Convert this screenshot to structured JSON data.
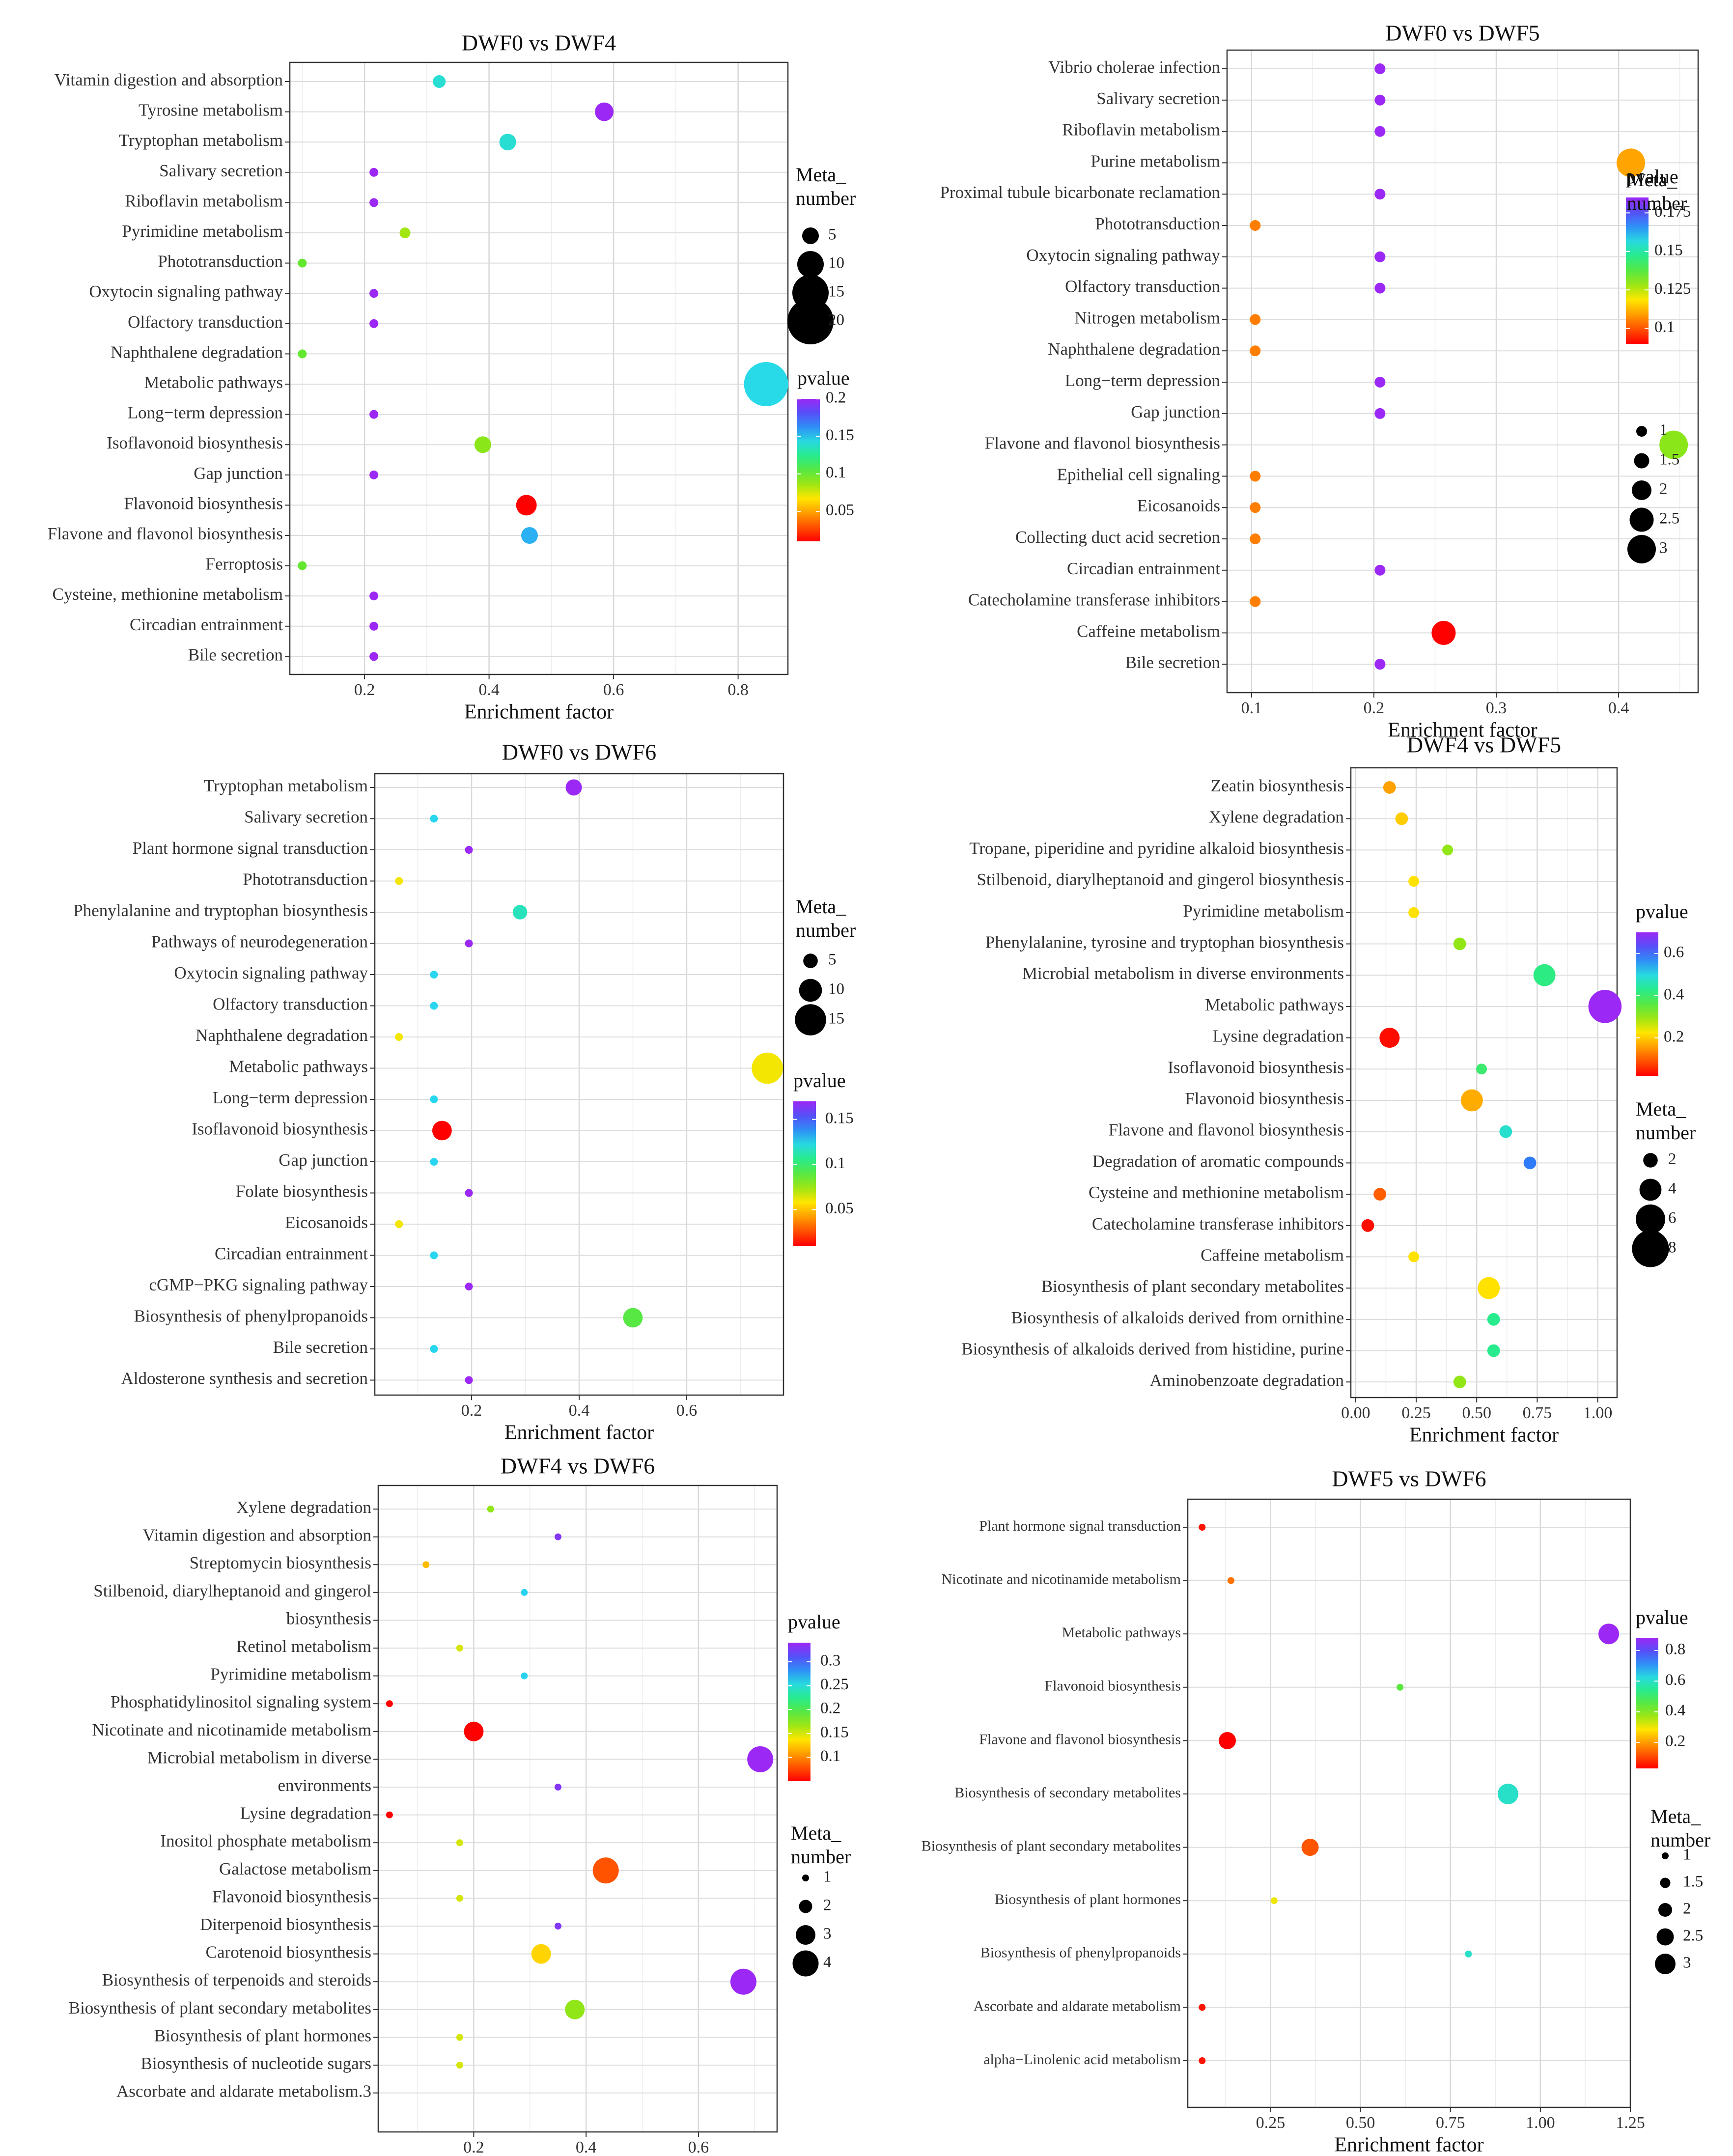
{
  "figure": "KEGG enrichment bubble plots",
  "chart_data": [
    {
      "id": "p1",
      "type": "scatter",
      "title": "DWF0 vs DWF4",
      "xlabel": "Enrichment factor",
      "xlim": [
        0.08,
        0.88
      ],
      "xticks": [
        0.2,
        0.4,
        0.6,
        0.8
      ],
      "categories": [
        "Vitamin digestion and absorption",
        "Tyrosine metabolism",
        "Tryptophan metabolism",
        "Salivary secretion",
        "Riboflavin metabolism",
        "Pyrimidine metabolism",
        "Phototransduction",
        "Oxytocin signaling pathway",
        "Olfactory transduction",
        "Naphthalene degradation",
        "Metabolic pathways",
        "Long−term depression",
        "Isoflavonoid biosynthesis",
        "Gap junction",
        "Flavonoid biosynthesis",
        "Flavone and flavonol biosynthesis",
        "Ferroptosis",
        "Cysteine, methionine metabolism",
        "Circadian entrainment",
        "Bile secretion"
      ],
      "points": [
        {
          "x": 0.32,
          "p": 0.14,
          "size": 3
        },
        {
          "x": 0.585,
          "p": 0.2,
          "size": 6
        },
        {
          "x": 0.43,
          "p": 0.14,
          "size": 5
        },
        {
          "x": 0.215,
          "p": 0.2,
          "size": 1
        },
        {
          "x": 0.215,
          "p": 0.2,
          "size": 1
        },
        {
          "x": 0.265,
          "p": 0.085,
          "size": 2
        },
        {
          "x": 0.1,
          "p": 0.1,
          "size": 1
        },
        {
          "x": 0.215,
          "p": 0.2,
          "size": 1
        },
        {
          "x": 0.215,
          "p": 0.2,
          "size": 1
        },
        {
          "x": 0.1,
          "p": 0.1,
          "size": 1
        },
        {
          "x": 0.845,
          "p": 0.145,
          "size": 19
        },
        {
          "x": 0.215,
          "p": 0.2,
          "size": 1
        },
        {
          "x": 0.39,
          "p": 0.09,
          "size": 5
        },
        {
          "x": 0.215,
          "p": 0.2,
          "size": 1
        },
        {
          "x": 0.46,
          "p": 0.01,
          "size": 7
        },
        {
          "x": 0.465,
          "p": 0.155,
          "size": 5
        },
        {
          "x": 0.1,
          "p": 0.1,
          "size": 1
        },
        {
          "x": 0.215,
          "p": 0.2,
          "size": 1
        },
        {
          "x": 0.215,
          "p": 0.2,
          "size": 1
        },
        {
          "x": 0.215,
          "p": 0.2,
          "size": 1
        }
      ],
      "legend": {
        "size_title": [
          "Meta_",
          "number"
        ],
        "size_values": [
          5,
          10,
          15,
          20
        ],
        "color_title": "pvalue",
        "color_range": [
          0.01,
          0.2
        ],
        "color_ticks": [
          0.2,
          0.15,
          0.1,
          0.05
        ]
      }
    },
    {
      "id": "p2",
      "type": "scatter",
      "title": "DWF0 vs DWF5",
      "xlabel": "Enrichment factor",
      "xlim": [
        0.08,
        0.465
      ],
      "xticks": [
        0.1,
        0.2,
        0.3,
        0.4
      ],
      "categories": [
        "Vibrio cholerae infection",
        "Salivary secretion",
        "Riboflavin metabolism",
        "Purine metabolism",
        "Proximal tubule bicarbonate reclamation",
        "Phototransduction",
        "Oxytocin signaling pathway",
        "Olfactory transduction",
        "Nitrogen metabolism",
        "Naphthalene degradation",
        "Long−term depression",
        "Gap junction",
        "Flavone and flavonol biosynthesis",
        "Epithelial cell signaling",
        "Eicosanoids",
        "Collecting duct acid secretion",
        "Circadian entrainment",
        "Catecholamine transferase inhibitors",
        "Caffeine metabolism",
        "Bile secretion"
      ],
      "points": [
        {
          "x": 0.205,
          "p": 0.185,
          "size": 1
        },
        {
          "x": 0.205,
          "p": 0.185,
          "size": 1
        },
        {
          "x": 0.205,
          "p": 0.185,
          "size": 1
        },
        {
          "x": 0.41,
          "p": 0.11,
          "size": 3
        },
        {
          "x": 0.205,
          "p": 0.185,
          "size": 1
        },
        {
          "x": 0.103,
          "p": 0.105,
          "size": 1
        },
        {
          "x": 0.205,
          "p": 0.185,
          "size": 1
        },
        {
          "x": 0.205,
          "p": 0.185,
          "size": 1
        },
        {
          "x": 0.103,
          "p": 0.105,
          "size": 1
        },
        {
          "x": 0.103,
          "p": 0.105,
          "size": 1
        },
        {
          "x": 0.205,
          "p": 0.185,
          "size": 1
        },
        {
          "x": 0.205,
          "p": 0.185,
          "size": 1
        },
        {
          "x": 0.445,
          "p": 0.13,
          "size": 3
        },
        {
          "x": 0.103,
          "p": 0.105,
          "size": 1
        },
        {
          "x": 0.103,
          "p": 0.105,
          "size": 1
        },
        {
          "x": 0.103,
          "p": 0.105,
          "size": 1
        },
        {
          "x": 0.205,
          "p": 0.185,
          "size": 1
        },
        {
          "x": 0.103,
          "p": 0.105,
          "size": 1
        },
        {
          "x": 0.257,
          "p": 0.09,
          "size": 2.5
        },
        {
          "x": 0.205,
          "p": 0.185,
          "size": 1
        }
      ],
      "legend": {
        "size_title": [
          "Meta_",
          "number"
        ],
        "size_values": [
          1.0,
          1.5,
          2.0,
          2.5,
          3.0
        ],
        "color_title": "pvalue",
        "color_range": [
          0.09,
          0.185
        ],
        "color_ticks": [
          0.175,
          0.15,
          0.125,
          0.1
        ]
      }
    },
    {
      "id": "p3",
      "type": "scatter",
      "title": "DWF0 vs DWF6",
      "xlabel": "Enrichment factor",
      "xlim": [
        0.02,
        0.78
      ],
      "xticks": [
        0.2,
        0.4,
        0.6
      ],
      "categories": [
        "Tryptophan metabolism",
        "Salivary secretion",
        "Plant hormone signal transduction",
        "Phototransduction",
        "Phenylalanine and tryptophan biosynthesis",
        "Pathways of neurodegeneration",
        "Oxytocin signaling pathway",
        "Olfactory transduction",
        "Naphthalene degradation",
        "Metabolic pathways",
        "Long−term depression",
        "Isoflavonoid biosynthesis",
        "Gap junction",
        "Folate biosynthesis",
        "Eicosanoids",
        "Circadian entrainment",
        "cGMP−PKG signaling pathway",
        "Biosynthesis of phenylpropanoids",
        "Bile secretion",
        "Aldosterone synthesis and secretion"
      ],
      "points": [
        {
          "x": 0.39,
          "p": 0.17,
          "size": 6
        },
        {
          "x": 0.13,
          "p": 0.125,
          "size": 1
        },
        {
          "x": 0.195,
          "p": 0.17,
          "size": 1
        },
        {
          "x": 0.065,
          "p": 0.06,
          "size": 1
        },
        {
          "x": 0.29,
          "p": 0.115,
          "size": 5
        },
        {
          "x": 0.195,
          "p": 0.17,
          "size": 1
        },
        {
          "x": 0.13,
          "p": 0.125,
          "size": 1
        },
        {
          "x": 0.13,
          "p": 0.125,
          "size": 1
        },
        {
          "x": 0.065,
          "p": 0.06,
          "size": 1
        },
        {
          "x": 0.75,
          "p": 0.06,
          "size": 15
        },
        {
          "x": 0.13,
          "p": 0.125,
          "size": 1
        },
        {
          "x": 0.145,
          "p": 0.01,
          "size": 8
        },
        {
          "x": 0.13,
          "p": 0.125,
          "size": 1
        },
        {
          "x": 0.195,
          "p": 0.17,
          "size": 1
        },
        {
          "x": 0.065,
          "p": 0.06,
          "size": 1
        },
        {
          "x": 0.13,
          "p": 0.125,
          "size": 1
        },
        {
          "x": 0.195,
          "p": 0.17,
          "size": 1
        },
        {
          "x": 0.5,
          "p": 0.09,
          "size": 8
        },
        {
          "x": 0.13,
          "p": 0.125,
          "size": 1
        },
        {
          "x": 0.195,
          "p": 0.17,
          "size": 1
        }
      ],
      "legend": {
        "size_title": [
          "Meta_",
          "number"
        ],
        "size_values": [
          5,
          10,
          15
        ],
        "color_title": "pvalue",
        "color_range": [
          0.01,
          0.17
        ],
        "color_ticks": [
          0.15,
          0.1,
          0.05
        ]
      }
    },
    {
      "id": "p4",
      "type": "scatter",
      "title": "DWF4 vs DWF5",
      "xlabel": "Enrichment factor",
      "xlim": [
        -0.02,
        1.08
      ],
      "xticks": [
        0.0,
        0.25,
        0.5,
        0.75,
        1.0
      ],
      "xtick_labels": [
        "0.00",
        "0.25",
        "0.50",
        "0.75",
        "1.00"
      ],
      "categories": [
        "Zeatin biosynthesis",
        "Xylene degradation",
        "Tropane, piperidine and pyridine alkaloid biosynthesis",
        "Stilbenoid, diarylheptanoid and gingerol biosynthesis",
        "Pyrimidine metabolism",
        "Phenylalanine, tyrosine and tryptophan biosynthesis",
        "Microbial metabolism in diverse environments",
        "Metabolic pathways",
        "Lysine degradation",
        "Isoflavonoid biosynthesis",
        "Flavonoid biosynthesis",
        "Flavone and flavonol biosynthesis",
        "Degradation of aromatic compounds",
        "Cysteine and methionine metabolism",
        "Catecholamine transferase inhibitors",
        "Caffeine metabolism",
        "Biosynthesis of plant secondary metabolites",
        "Biosynthesis of alkaloids derived from ornithine",
        "Biosynthesis of alkaloids derived from histidine, purine",
        "Aminobenzoate degradation"
      ],
      "points": [
        {
          "x": 0.14,
          "p": 0.16,
          "size": 1.5
        },
        {
          "x": 0.19,
          "p": 0.2,
          "size": 1.5
        },
        {
          "x": 0.38,
          "p": 0.3,
          "size": 1
        },
        {
          "x": 0.24,
          "p": 0.22,
          "size": 1
        },
        {
          "x": 0.24,
          "p": 0.22,
          "size": 1
        },
        {
          "x": 0.43,
          "p": 0.3,
          "size": 1.5
        },
        {
          "x": 0.78,
          "p": 0.42,
          "size": 4
        },
        {
          "x": 1.03,
          "p": 0.7,
          "size": 7
        },
        {
          "x": 0.14,
          "p": 0.03,
          "size": 3.5
        },
        {
          "x": 0.52,
          "p": 0.4,
          "size": 1
        },
        {
          "x": 0.48,
          "p": 0.17,
          "size": 4
        },
        {
          "x": 0.62,
          "p": 0.48,
          "size": 1.5
        },
        {
          "x": 0.72,
          "p": 0.58,
          "size": 1.5
        },
        {
          "x": 0.1,
          "p": 0.1,
          "size": 1.5
        },
        {
          "x": 0.05,
          "p": 0.03,
          "size": 1.5
        },
        {
          "x": 0.24,
          "p": 0.22,
          "size": 1
        },
        {
          "x": 0.55,
          "p": 0.22,
          "size": 4
        },
        {
          "x": 0.57,
          "p": 0.43,
          "size": 1.5
        },
        {
          "x": 0.57,
          "p": 0.43,
          "size": 1.5
        },
        {
          "x": 0.43,
          "p": 0.3,
          "size": 1.5
        }
      ],
      "legend": {
        "size_title": [
          "Meta_",
          "number"
        ],
        "size_values": [
          2,
          4,
          6,
          8
        ],
        "color_title": "pvalue",
        "color_range": [
          0.02,
          0.7
        ],
        "color_ticks": [
          0.6,
          0.4,
          0.2
        ]
      }
    },
    {
      "id": "p5",
      "type": "scatter",
      "title": "DWF4 vs DWF6",
      "xlabel": "Enrichment factor",
      "xlim": [
        0.03,
        0.74
      ],
      "xticks": [
        0.2,
        0.4,
        0.6
      ],
      "categories": [
        "Xylene degradation",
        "Vitamin digestion and absorption",
        "Streptomycin biosynthesis",
        "Stilbenoid, diarylheptanoid and gingerol",
        "biosynthesis",
        "Retinol metabolism",
        "Pyrimidine metabolism",
        "Phosphatidylinositol signaling system",
        "Nicotinate and nicotinamide metabolism",
        "Microbial metabolism in diverse",
        "environments",
        "Lysine degradation",
        "Inositol phosphate metabolism",
        "Galactose metabolism",
        "Flavonoid biosynthesis",
        "Diterpenoid biosynthesis",
        "Carotenoid biosynthesis",
        "Biosynthesis of terpenoids and steroids",
        "Biosynthesis of plant secondary metabolites",
        "Biosynthesis of plant hormones",
        "Biosynthesis of nucleotide sugars",
        "Ascorbate and aldarate metabolism.3"
      ],
      "points": [
        {
          "x": 0.23,
          "p": 0.17,
          "size": 1
        },
        {
          "x": 0.35,
          "p": 0.33,
          "size": 1
        },
        {
          "x": 0.115,
          "p": 0.12,
          "size": 1
        },
        {
          "x": 0.29,
          "p": 0.26,
          "size": 1
        },
        {
          "x": 0.175,
          "p": 0.15,
          "size": 1
        },
        {
          "x": 0.29,
          "p": 0.26,
          "size": 1
        },
        {
          "x": 0.05,
          "p": 0.05,
          "size": 1
        },
        {
          "x": 0.2,
          "p": 0.05,
          "size": 3
        },
        {
          "x": 0.71,
          "p": 0.34,
          "size": 4
        },
        {
          "x": 0.35,
          "p": 0.33,
          "size": 1
        },
        {
          "x": 0.05,
          "p": 0.05,
          "size": 1
        },
        {
          "x": 0.175,
          "p": 0.15,
          "size": 1
        },
        {
          "x": 0.435,
          "p": 0.08,
          "size": 4
        },
        {
          "x": 0.175,
          "p": 0.15,
          "size": 1
        },
        {
          "x": 0.35,
          "p": 0.33,
          "size": 1
        },
        {
          "x": 0.32,
          "p": 0.13,
          "size": 3
        },
        {
          "x": 0.68,
          "p": 0.34,
          "size": 4
        },
        {
          "x": 0.38,
          "p": 0.17,
          "size": 3
        },
        {
          "x": 0.175,
          "p": 0.15,
          "size": 1
        },
        {
          "x": 0.175,
          "p": 0.15,
          "size": 1
        }
      ],
      "point_rows": [
        0,
        1,
        2,
        3,
        5,
        6,
        7,
        8,
        9,
        10,
        11,
        12,
        13,
        14,
        15,
        16,
        17,
        18,
        19,
        20
      ],
      "legend": {
        "size_title": [
          "Meta_",
          "number"
        ],
        "size_values": [
          1,
          2,
          3,
          4
        ],
        "color_title": "pvalue",
        "color_range": [
          0.05,
          0.34
        ],
        "color_ticks": [
          0.3,
          0.25,
          0.2,
          0.15,
          0.1
        ]
      }
    },
    {
      "id": "p6",
      "type": "scatter",
      "title": "DWF5 vs DWF6",
      "xlabel": "Enrichment factor",
      "xlim": [
        0.02,
        1.25
      ],
      "xticks": [
        0.25,
        0.5,
        0.75,
        1.0,
        1.25
      ],
      "xtick_labels": [
        "0.25",
        "0.50",
        "0.75",
        "1.00",
        "1.25"
      ],
      "categories": [
        "Plant hormone signal transduction",
        "Nicotinate and nicotinamide metabolism",
        "Metabolic pathways",
        "Flavonoid biosynthesis",
        "Flavone and flavonol biosynthesis",
        "Biosynthesis of secondary metabolites",
        "Biosynthesis of plant secondary metabolites",
        "Biosynthesis of plant hormones",
        "Biosynthesis of phenylpropanoids",
        "Ascorbate and aldarate metabolism",
        "alpha−Linolenic acid metabolism"
      ],
      "points": [
        {
          "x": 0.06,
          "p": 0.05,
          "size": 1
        },
        {
          "x": 0.14,
          "p": 0.15,
          "size": 1
        },
        {
          "x": 1.19,
          "p": 0.88,
          "size": 3
        },
        {
          "x": 0.61,
          "p": 0.45,
          "size": 1
        },
        {
          "x": 0.13,
          "p": 0.03,
          "size": 2.5
        },
        {
          "x": 0.91,
          "p": 0.6,
          "size": 3
        },
        {
          "x": 0.36,
          "p": 0.12,
          "size": 2.5
        },
        {
          "x": 0.26,
          "p": 0.3,
          "size": 1
        },
        {
          "x": 0.8,
          "p": 0.6,
          "size": 1
        },
        {
          "x": 0.06,
          "p": 0.05,
          "size": 1
        },
        {
          "x": 0.06,
          "p": 0.05,
          "size": 1
        }
      ],
      "legend": {
        "size_title": [
          "Meta_",
          "number"
        ],
        "size_values": [
          1.0,
          1.5,
          2.0,
          2.5,
          3.0
        ],
        "color_title": "pvalue",
        "color_range": [
          0.03,
          0.88
        ],
        "color_ticks": [
          0.8,
          0.6,
          0.4,
          0.2
        ]
      }
    }
  ]
}
